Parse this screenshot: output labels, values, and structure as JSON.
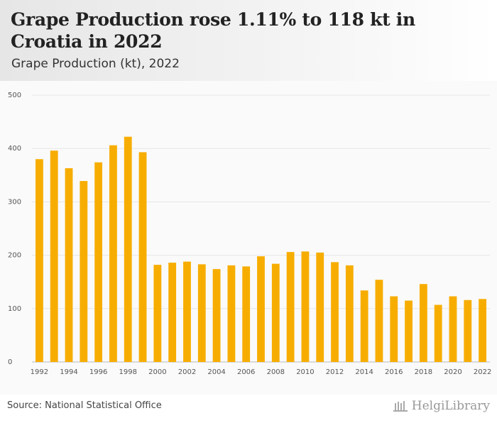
{
  "header": {
    "title": "Grape Production rose 1.11% to 118 kt in Croatia in 2022",
    "subtitle": "Grape Production (kt), 2022"
  },
  "footer": {
    "source": "Source: National Statistical Office",
    "brand": "HelgiLibrary"
  },
  "colors": {
    "bar": "#f7ad00",
    "grid": "#e6e6e6"
  },
  "chart_data": {
    "type": "bar",
    "title": "Grape Production rose 1.11% to 118 kt in Croatia in 2022",
    "subtitle": "Grape Production (kt), 2022",
    "xlabel": "",
    "ylabel": "",
    "ylim": [
      0,
      500
    ],
    "yticks": [
      0,
      100,
      200,
      300,
      400,
      500
    ],
    "grid": true,
    "legend": "none",
    "categories": [
      "1992",
      "1993",
      "1994",
      "1995",
      "1996",
      "1997",
      "1998",
      "1999",
      "2000",
      "2001",
      "2002",
      "2003",
      "2004",
      "2005",
      "2006",
      "2007",
      "2008",
      "2009",
      "2010",
      "2011",
      "2012",
      "2013",
      "2014",
      "2015",
      "2016",
      "2017",
      "2018",
      "2019",
      "2020",
      "2021",
      "2022"
    ],
    "xtick_labels": [
      "1992",
      "1994",
      "1996",
      "1998",
      "2000",
      "2002",
      "2004",
      "2006",
      "2008",
      "2010",
      "2012",
      "2014",
      "2016",
      "2018",
      "2020",
      "2022"
    ],
    "values": [
      380,
      396,
      363,
      339,
      374,
      406,
      422,
      393,
      182,
      186,
      188,
      183,
      174,
      181,
      179,
      198,
      184,
      206,
      207,
      205,
      187,
      181,
      134,
      154,
      123,
      115,
      146,
      107,
      123,
      116,
      118
    ]
  }
}
